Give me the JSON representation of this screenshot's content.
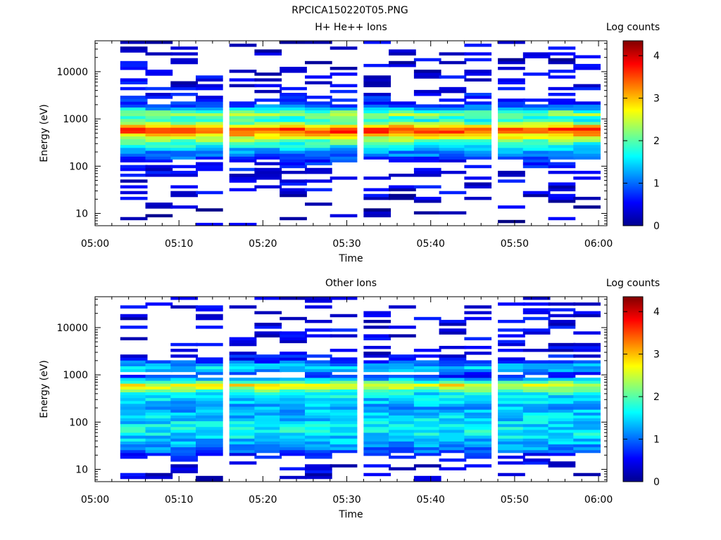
{
  "figure_title": "RPCICA150220T05.PNG",
  "chart_data": [
    {
      "type": "heatmap",
      "title": "H+ He++ Ions",
      "xlabel": "Time",
      "ylabel": "Energy (eV)",
      "x_ticks": [
        "05:00",
        "05:10",
        "05:20",
        "05:30",
        "05:40",
        "05:50",
        "06:00"
      ],
      "x_range": [
        "05:00",
        "06:01"
      ],
      "y_ticks": [
        "10",
        "100",
        "1000",
        "10000"
      ],
      "y_range": [
        5.5,
        45000
      ],
      "y_scale": "log",
      "colorbar": {
        "label": "Log counts",
        "ticks": [
          "0",
          "1",
          "2",
          "3",
          "4"
        ],
        "range": [
          0,
          4.35
        ],
        "colormap": "jet"
      },
      "time_bins": [
        "05:03",
        "05:06",
        "05:09",
        "05:12",
        "05:16",
        "05:19",
        "05:22",
        "05:25",
        "05:28",
        "05:32",
        "05:35",
        "05:38",
        "05:41",
        "05:44",
        "05:48",
        "05:51",
        "05:54",
        "05:57"
      ],
      "profile": [
        {
          "energy_ev": 10,
          "log_counts": 0
        },
        {
          "energy_ev": 30,
          "log_counts": 0.2
        },
        {
          "energy_ev": 100,
          "log_counts": 0.5
        },
        {
          "energy_ev": 200,
          "log_counts": 1.2
        },
        {
          "energy_ev": 330,
          "log_counts": 2.0
        },
        {
          "energy_ev": 450,
          "log_counts": 2.8
        },
        {
          "energy_ev": 550,
          "log_counts": 3.6
        },
        {
          "energy_ev": 650,
          "log_counts": 3.3
        },
        {
          "energy_ev": 800,
          "log_counts": 2.3
        },
        {
          "energy_ev": 1000,
          "log_counts": 1.6
        },
        {
          "energy_ev": 1200,
          "log_counts": 2.3
        },
        {
          "energy_ev": 1400,
          "log_counts": 2.0
        },
        {
          "energy_ev": 2000,
          "log_counts": 0.8
        },
        {
          "energy_ev": 5000,
          "log_counts": 0.3
        },
        {
          "energy_ev": 30000,
          "log_counts": 0.1
        }
      ]
    },
    {
      "type": "heatmap",
      "title": "Other Ions",
      "xlabel": "Time",
      "ylabel": "Energy (eV)",
      "x_ticks": [
        "05:00",
        "05:10",
        "05:20",
        "05:30",
        "05:40",
        "05:50",
        "06:00"
      ],
      "x_range": [
        "05:00",
        "06:01"
      ],
      "y_ticks": [
        "10",
        "100",
        "1000",
        "10000"
      ],
      "y_range": [
        5.5,
        45000
      ],
      "y_scale": "log",
      "colorbar": {
        "label": "Log counts",
        "ticks": [
          "0",
          "1",
          "2",
          "3",
          "4"
        ],
        "range": [
          0,
          4.35
        ],
        "colormap": "jet"
      },
      "time_bins": [
        "05:03",
        "05:06",
        "05:09",
        "05:12",
        "05:16",
        "05:19",
        "05:22",
        "05:25",
        "05:28",
        "05:32",
        "05:35",
        "05:38",
        "05:41",
        "05:44",
        "05:48",
        "05:51",
        "05:54",
        "05:57"
      ],
      "profile": [
        {
          "energy_ev": 8,
          "log_counts": 0.1
        },
        {
          "energy_ev": 15,
          "log_counts": 0.4
        },
        {
          "energy_ev": 30,
          "log_counts": 1.2
        },
        {
          "energy_ev": 60,
          "log_counts": 1.6
        },
        {
          "energy_ev": 100,
          "log_counts": 1.5
        },
        {
          "energy_ev": 200,
          "log_counts": 1.3
        },
        {
          "energy_ev": 400,
          "log_counts": 1.6
        },
        {
          "energy_ev": 600,
          "log_counts": 2.8
        },
        {
          "energy_ev": 800,
          "log_counts": 1.4
        },
        {
          "energy_ev": 1000,
          "log_counts": 0.5
        },
        {
          "energy_ev": 1400,
          "log_counts": 1.5
        },
        {
          "energy_ev": 2000,
          "log_counts": 0.8
        },
        {
          "energy_ev": 3000,
          "log_counts": 0.3
        }
      ]
    }
  ]
}
